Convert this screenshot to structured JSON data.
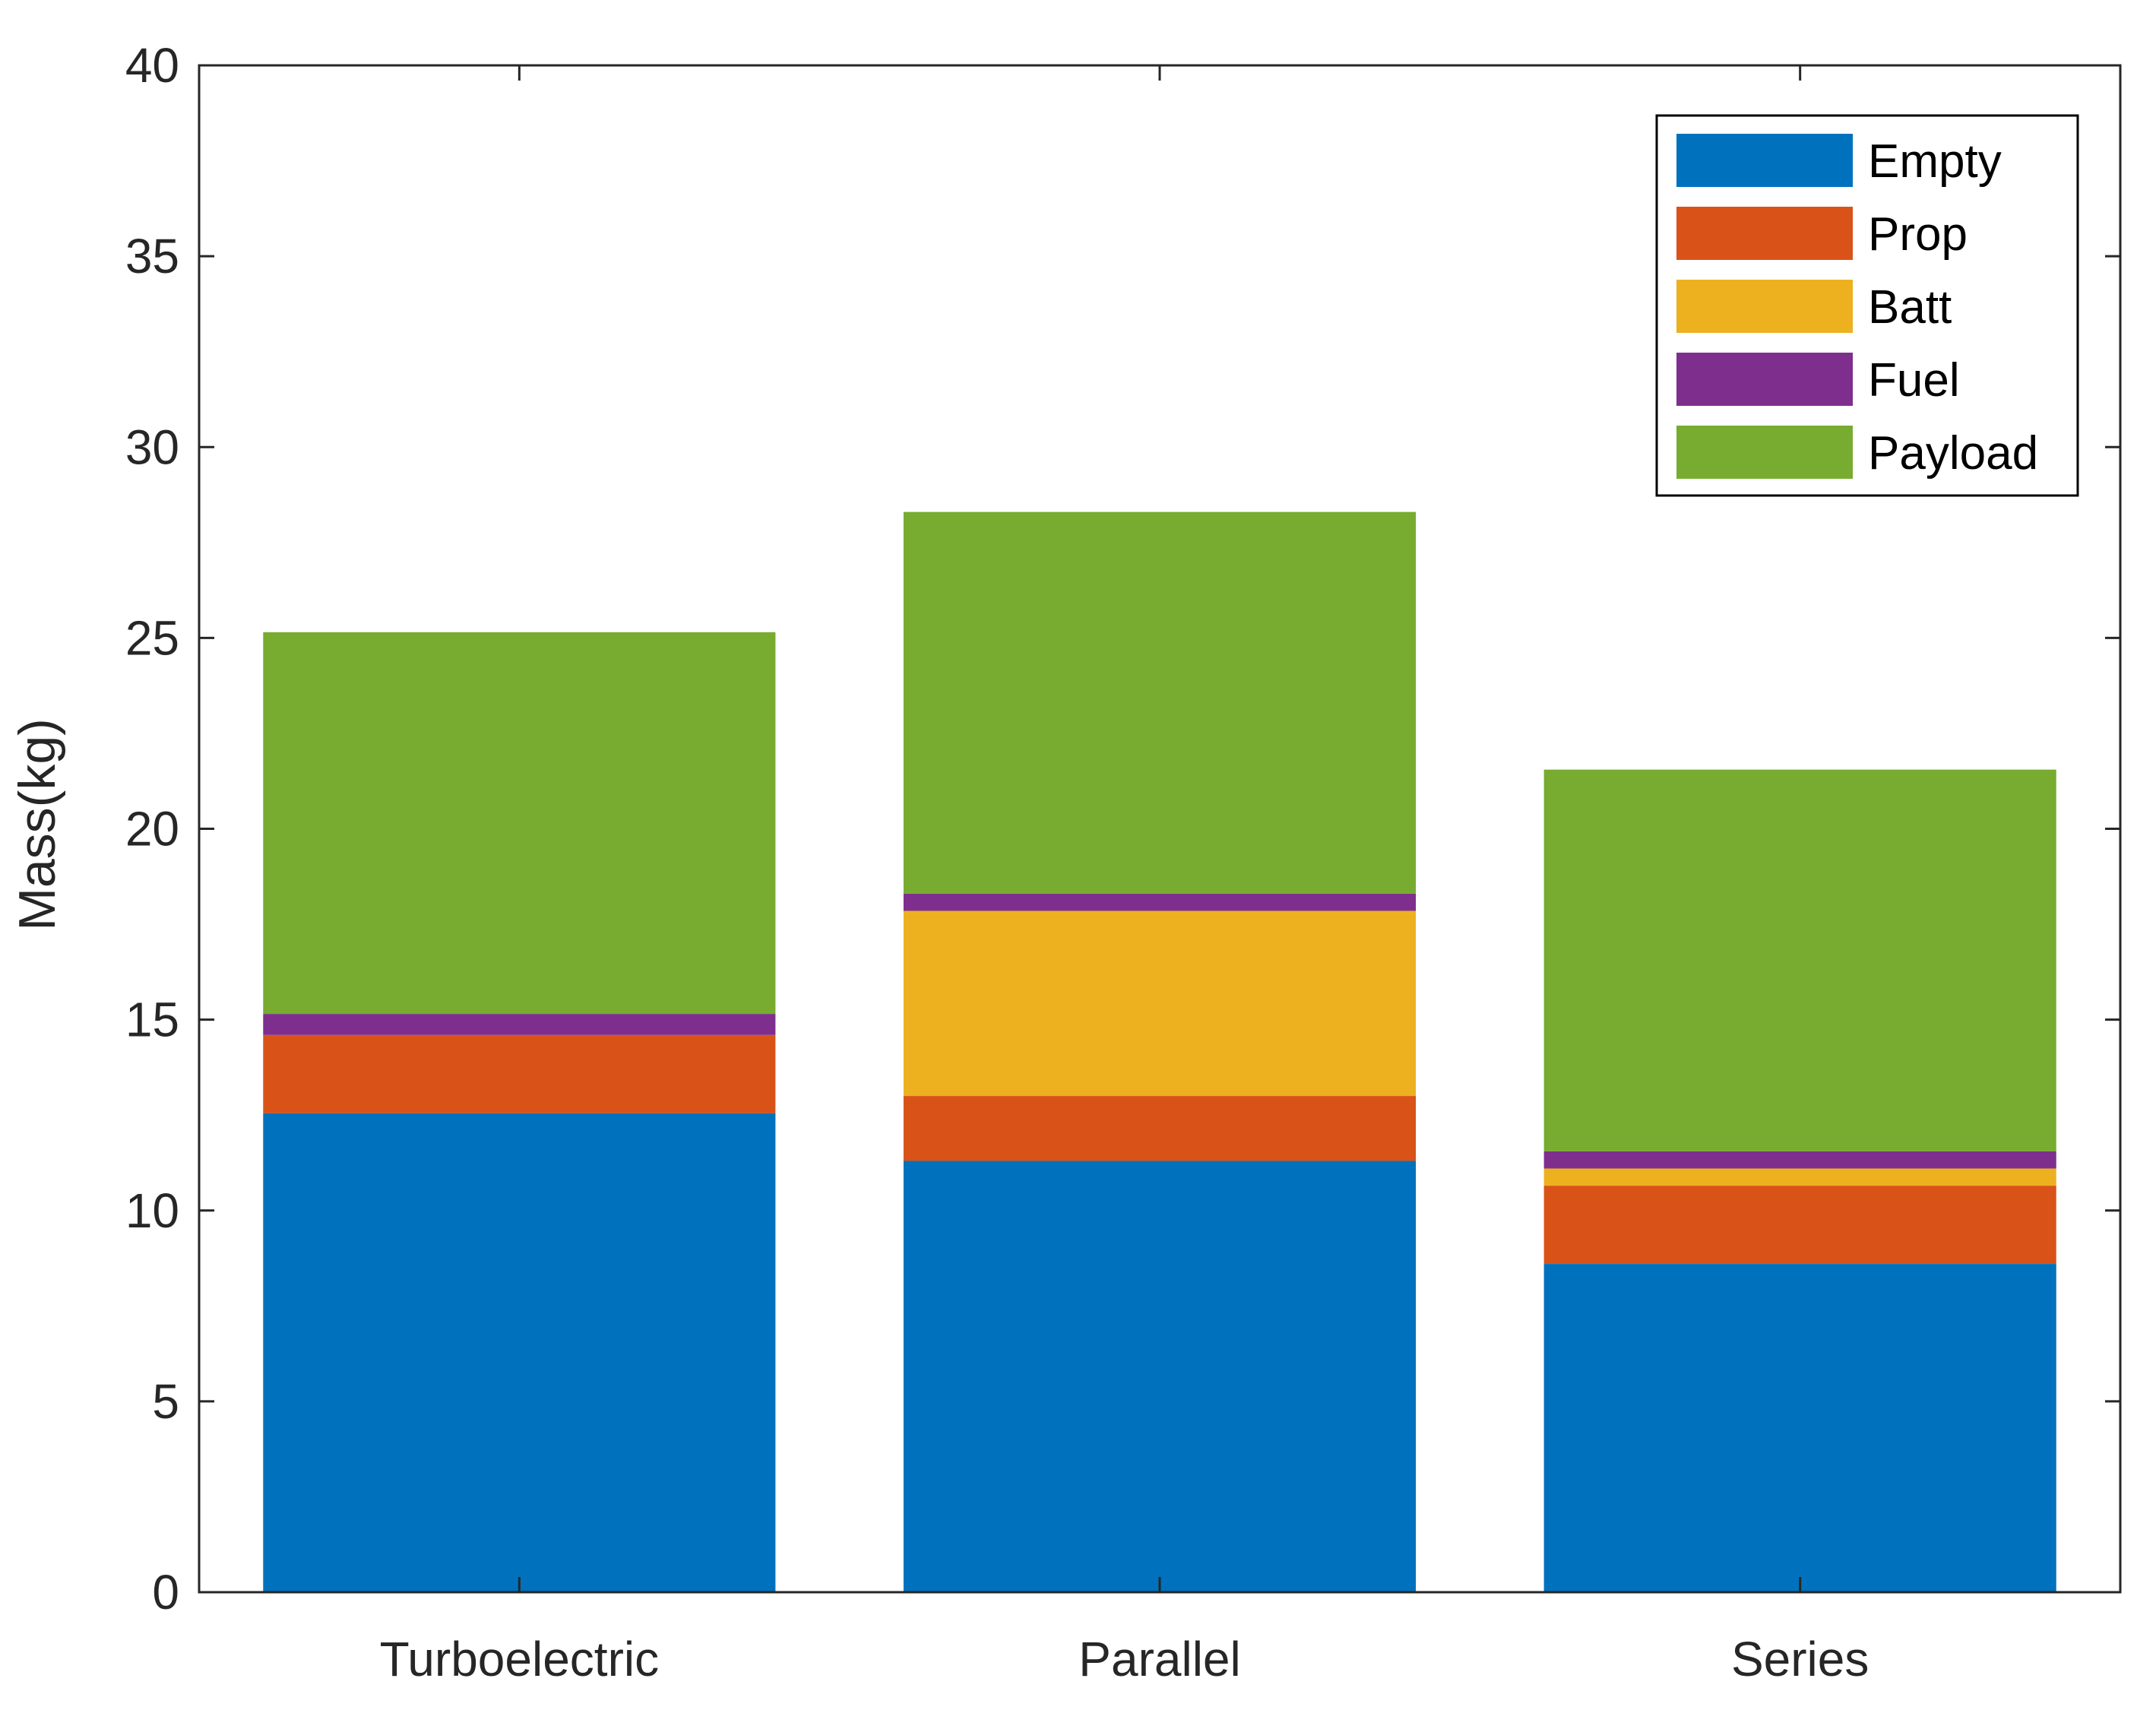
{
  "chart_data": {
    "type": "bar",
    "stacked": true,
    "title": "",
    "xlabel": "",
    "ylabel": "Mass(kg)",
    "ylim": [
      0,
      40
    ],
    "yticks": [
      0,
      5,
      10,
      15,
      20,
      25,
      30,
      35,
      40
    ],
    "ytick_labels": [
      "0",
      "5",
      "10",
      "15",
      "20",
      "25",
      "30",
      "35",
      "40"
    ],
    "grid": false,
    "legend_position": "top-right",
    "categories": [
      "Turboelectric",
      "Parallel",
      "Series"
    ],
    "series": [
      {
        "name": "Empty",
        "color": "#0072BD",
        "values": [
          12.55,
          11.3,
          8.6
        ]
      },
      {
        "name": "Prop",
        "color": "#D95319",
        "values": [
          2.05,
          1.7,
          2.05
        ]
      },
      {
        "name": "Batt",
        "color": "#EDB120",
        "values": [
          0.0,
          4.85,
          0.45
        ]
      },
      {
        "name": "Fuel",
        "color": "#7E2F8E",
        "values": [
          0.55,
          0.45,
          0.45
        ]
      },
      {
        "name": "Payload",
        "color": "#77AC30",
        "values": [
          10.0,
          10.0,
          10.0
        ]
      }
    ]
  }
}
